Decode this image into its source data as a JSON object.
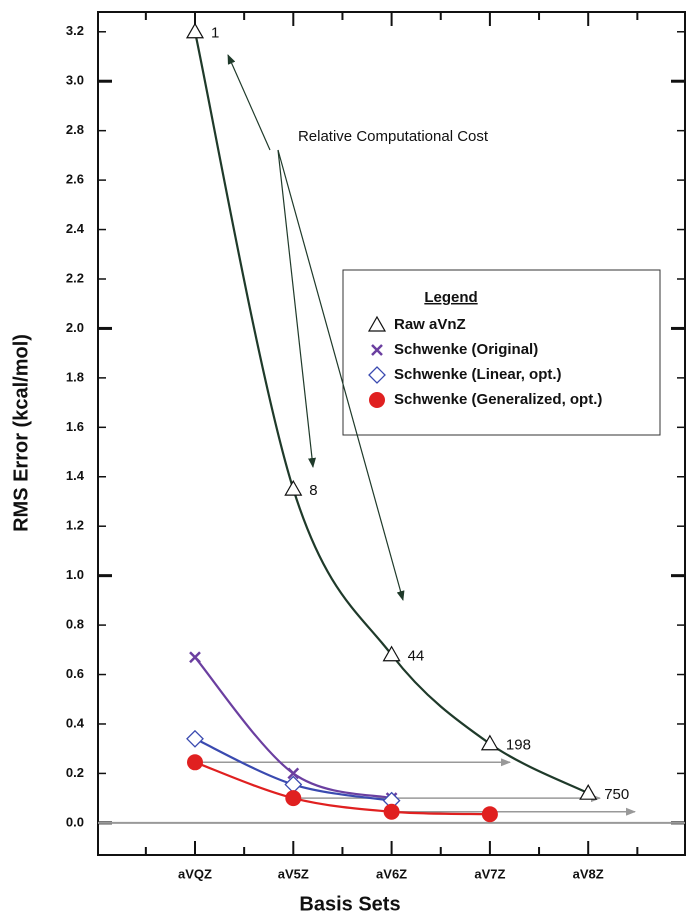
{
  "chart_data": {
    "type": "line",
    "x_label": "Basis Sets",
    "y_label": "RMS Error (kcal/mol)",
    "categories": [
      "aVQZ",
      "aV5Z",
      "aV6Z",
      "aV7Z",
      "aV8Z"
    ],
    "ylim": [
      -0.13,
      3.28
    ],
    "yticks": [
      {
        "value": 0,
        "label": "0.0"
      },
      {
        "value": 0.2,
        "label": "0.2"
      },
      {
        "value": 0.4,
        "label": "0.4"
      },
      {
        "value": 0.6,
        "label": "0.6"
      },
      {
        "value": 0.8,
        "label": "0.8"
      },
      {
        "value": 1,
        "label": "1.0"
      },
      {
        "value": 1.2,
        "label": "1.2"
      },
      {
        "value": 1.4,
        "label": "1.4"
      },
      {
        "value": 1.6,
        "label": "1.6"
      },
      {
        "value": 1.8,
        "label": "1.8"
      },
      {
        "value": 2,
        "label": "2.0"
      },
      {
        "value": 2.2,
        "label": "2.2"
      },
      {
        "value": 2.4,
        "label": "2.4"
      },
      {
        "value": 2.6,
        "label": "2.6"
      },
      {
        "value": 2.8,
        "label": "2.8"
      },
      {
        "value": 3,
        "label": "3.0"
      },
      {
        "value": 3.2,
        "label": "3.2"
      }
    ],
    "legend_title": "Legend",
    "series": [
      {
        "name": "Raw aVnZ",
        "color": "#1f3a2a",
        "marker": "triangle",
        "values": [
          3.2,
          1.35,
          0.68,
          0.32,
          0.12
        ]
      },
      {
        "name": "Schwenke (Original)",
        "color": "#6b3fa0",
        "marker": "x",
        "values": [
          0.67,
          0.2,
          0.1,
          null,
          null
        ]
      },
      {
        "name": "Schwenke (Linear, opt.)",
        "color": "#3a4ab0",
        "marker": "diamond",
        "values": [
          0.34,
          0.155,
          0.09,
          null,
          null
        ]
      },
      {
        "name": "Schwenke (Generalized, opt.)",
        "color": "#e02020",
        "marker": "circle",
        "values": [
          0.245,
          0.1,
          0.045,
          0.035,
          null
        ]
      }
    ],
    "annotation": "Relative Computational Cost",
    "costs": [
      1,
      8,
      44,
      198,
      750
    ]
  }
}
